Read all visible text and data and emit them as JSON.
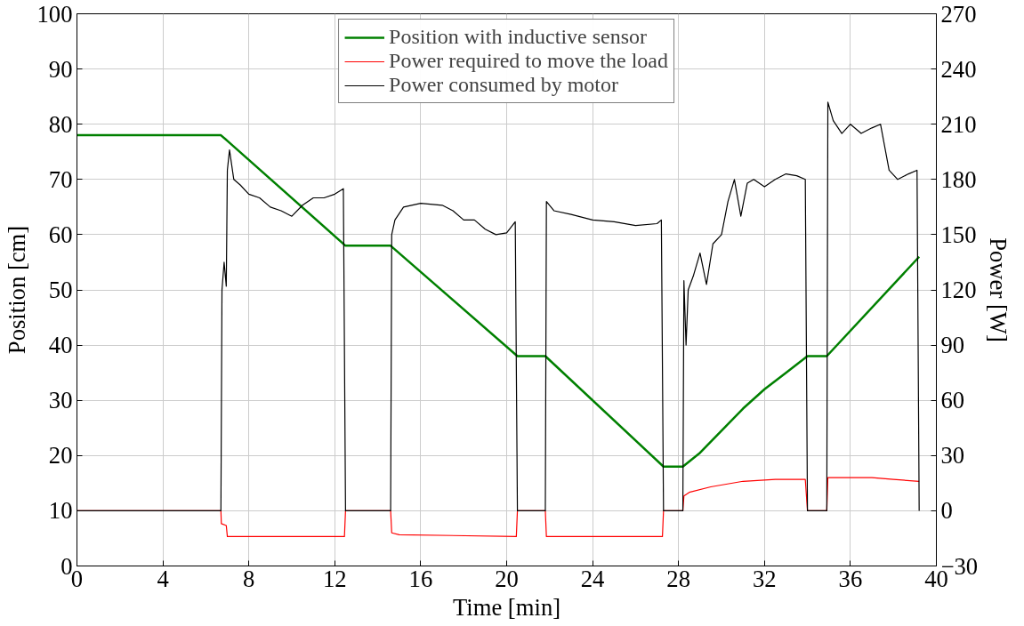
{
  "chart_data": {
    "type": "line",
    "xlabel": "Time [min]",
    "ylabel": "Position [cm]",
    "y2label": "Power [W]",
    "xlim": [
      0,
      40
    ],
    "xticks": [
      0,
      4,
      8,
      12,
      16,
      20,
      24,
      28,
      32,
      36,
      40
    ],
    "ylim": [
      0,
      100
    ],
    "yticks": [
      0,
      10,
      20,
      30,
      40,
      50,
      60,
      70,
      80,
      90,
      100
    ],
    "y2lim": [
      -30,
      270
    ],
    "y2ticks": [
      -30,
      0,
      30,
      60,
      90,
      120,
      150,
      180,
      210,
      240,
      270
    ],
    "grid": true,
    "legend": "top",
    "line_style": "solid",
    "series": [
      {
        "name": "Position with inductive sensor",
        "color": "#008000",
        "x": [
          0,
          6.7,
          7.0,
          12.5,
          14.6,
          20.5,
          21.8,
          27.3,
          28.2,
          29.0,
          30.0,
          31.0,
          32.0,
          33.0,
          34.0,
          34.9,
          39.2
        ],
        "values": [
          78,
          78,
          77,
          58,
          58,
          38,
          38,
          18,
          18,
          20.5,
          24.5,
          28.5,
          32,
          35,
          38,
          38,
          56
        ]
      },
      {
        "name": "Power required to move the load",
        "color": "#ff0000",
        "axis": "y2",
        "x": [
          0,
          6.7,
          6.72,
          6.95,
          7.0,
          12.45,
          12.5,
          14.6,
          14.65,
          15.0,
          20.45,
          20.5,
          21.8,
          21.85,
          27.25,
          27.3,
          28.2,
          28.25,
          28.5,
          29.5,
          31.0,
          32.5,
          33.9,
          34.0,
          34.9,
          34.95,
          37.0,
          38.0,
          39.2
        ],
        "values": [
          0,
          0,
          -7,
          -8,
          -14,
          -14,
          0,
          0,
          -12,
          -13,
          -14,
          0,
          0,
          -14,
          -14,
          0,
          0,
          8,
          10,
          13,
          16,
          17,
          17,
          0,
          0,
          18,
          18,
          17,
          16
        ]
      },
      {
        "name": "Power consumed by motor",
        "color": "#000000",
        "axis": "y2",
        "x": [
          0,
          6.7,
          6.75,
          6.85,
          6.95,
          7.0,
          7.1,
          7.3,
          7.6,
          8.0,
          8.5,
          9.0,
          9.5,
          10.0,
          10.5,
          11.0,
          11.5,
          12.0,
          12.4,
          12.5,
          14.6,
          14.65,
          14.8,
          15.2,
          16.0,
          17.0,
          17.5,
          18.0,
          18.5,
          19.0,
          19.5,
          20.0,
          20.4,
          20.5,
          21.8,
          21.85,
          22.2,
          23.0,
          24.0,
          25.0,
          26.0,
          27.0,
          27.2,
          27.3,
          28.2,
          28.25,
          28.35,
          28.45,
          28.7,
          29.0,
          29.3,
          29.6,
          30.0,
          30.3,
          30.6,
          30.9,
          31.2,
          31.5,
          32.0,
          32.5,
          33.0,
          33.5,
          33.9,
          34.0,
          34.9,
          34.95,
          35.2,
          35.6,
          36.0,
          36.5,
          37.0,
          37.4,
          37.8,
          38.2,
          38.7,
          39.1,
          39.2
        ],
        "values": [
          0,
          0,
          120,
          135,
          122,
          185,
          196,
          180,
          177,
          172,
          170,
          165,
          163,
          160,
          166,
          170,
          170,
          172,
          175,
          0,
          0,
          150,
          158,
          165,
          167,
          166,
          163,
          158,
          158,
          153,
          150,
          151,
          157,
          0,
          0,
          168,
          163,
          161,
          158,
          157,
          155,
          156,
          158,
          0,
          0,
          125,
          90,
          120,
          128,
          140,
          123,
          145,
          150,
          168,
          180,
          160,
          178,
          180,
          176,
          180,
          183,
          182,
          180,
          0,
          0,
          222,
          212,
          205,
          210,
          205,
          208,
          210,
          185,
          180,
          183,
          185,
          0
        ]
      }
    ]
  }
}
